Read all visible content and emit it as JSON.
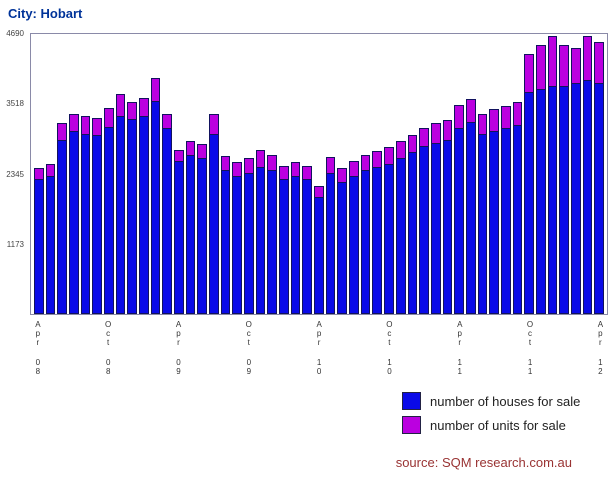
{
  "title": "City: Hobart",
  "source": "source: SQM research.com.au",
  "colors": {
    "houses": "#0a0ae8",
    "units": "#bb00e0",
    "title": "#003399",
    "source": "#993333"
  },
  "legend": [
    {
      "label": "number of houses for sale",
      "color_key": "houses"
    },
    {
      "label": "number of units for sale",
      "color_key": "units"
    }
  ],
  "chart_data": {
    "type": "bar",
    "stacked": true,
    "title": "City: Hobart",
    "ylim": [
      0,
      4690
    ],
    "yticks": [
      1173,
      2345,
      3518,
      4690
    ],
    "tick_every": 6,
    "x": [
      "Apr 08",
      "May 08",
      "Jun 08",
      "Jul 08",
      "Aug 08",
      "Sep 08",
      "Oct 08",
      "Nov 08",
      "Dec 08",
      "Jan 09",
      "Feb 09",
      "Mar 09",
      "Apr 09",
      "May 09",
      "Jun 09",
      "Jul 09",
      "Aug 09",
      "Sep 09",
      "Oct 09",
      "Nov 09",
      "Dec 09",
      "Jan 10",
      "Feb 10",
      "Mar 10",
      "Apr 10",
      "May 10",
      "Jun 10",
      "Jul 10",
      "Aug 10",
      "Sep 10",
      "Oct 10",
      "Nov 10",
      "Dec 10",
      "Jan 11",
      "Feb 11",
      "Mar 11",
      "Apr 11",
      "May 11",
      "Jun 11",
      "Jul 11",
      "Aug 11",
      "Sep 11",
      "Oct 11",
      "Nov 11",
      "Dec 11",
      "Jan 12",
      "Feb 12",
      "Mar 12",
      "Apr 12"
    ],
    "xticklabels": [
      "Apr 08",
      "Oct 08",
      "Apr 09",
      "Oct 09",
      "Apr 10",
      "Oct 10",
      "Apr 11",
      "Oct 11",
      "Apr 12"
    ],
    "series": [
      {
        "name": "number of houses for sale",
        "values": [
          2250,
          2300,
          2900,
          3050,
          3000,
          2980,
          3120,
          3300,
          3250,
          3300,
          3550,
          3100,
          2550,
          2650,
          2600,
          3000,
          2400,
          2300,
          2350,
          2450,
          2400,
          2250,
          2300,
          2250,
          1950,
          2350,
          2200,
          2300,
          2400,
          2450,
          2500,
          2600,
          2700,
          2800,
          2850,
          2900,
          3100,
          3200,
          3000,
          3050,
          3100,
          3150,
          3700,
          3750,
          3800,
          3800,
          3850,
          3900,
          3850
        ]
      },
      {
        "name": "number of units for sale",
        "values": [
          200,
          220,
          300,
          300,
          320,
          300,
          330,
          380,
          300,
          320,
          400,
          250,
          200,
          250,
          250,
          350,
          250,
          250,
          260,
          300,
          260,
          230,
          240,
          230,
          200,
          280,
          250,
          260,
          270,
          280,
          300,
          300,
          300,
          320,
          350,
          350,
          400,
          400,
          350,
          380,
          380,
          400,
          650,
          750,
          850,
          700,
          600,
          750,
          700
        ]
      }
    ],
    "legend_position": "bottom-right",
    "grid": false
  }
}
